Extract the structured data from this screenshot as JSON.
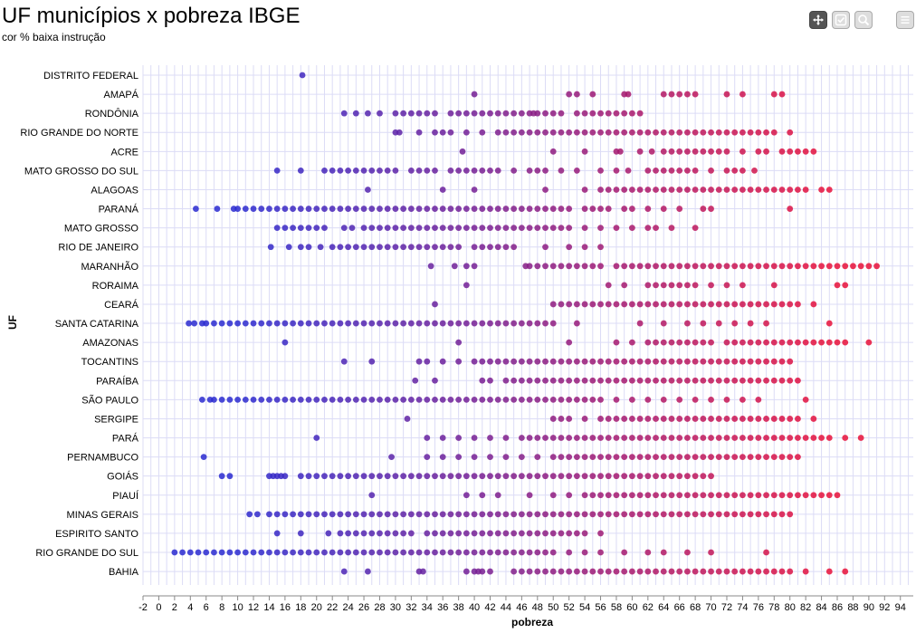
{
  "header": {
    "title": "UF municípios x pobreza IBGE",
    "subtitle": "cor % baixa instrução"
  },
  "toolbar": {
    "buttons": [
      {
        "icon": "pan-icon",
        "active": true
      },
      {
        "icon": "select-icon",
        "active": false
      },
      {
        "icon": "zoom-icon",
        "active": false
      },
      {
        "icon": "menu-icon",
        "active": false
      }
    ]
  },
  "colors": {
    "low_instruction": "#2a2ad0",
    "high_instruction": "#e8103a",
    "grid": "#dcdcf6",
    "background": "#ffffff"
  },
  "chart_data": {
    "type": "scatter",
    "title": "UF municípios x pobreza IBGE",
    "subtitle": "cor % baixa instrução",
    "xlabel": "pobreza",
    "ylabel": "UF",
    "xlim": [
      -2,
      95
    ],
    "x_ticks": [
      -2,
      0,
      2,
      4,
      6,
      8,
      10,
      12,
      14,
      16,
      18,
      20,
      22,
      24,
      26,
      28,
      30,
      32,
      34,
      36,
      38,
      40,
      42,
      44,
      46,
      48,
      50,
      52,
      54,
      56,
      58,
      60,
      62,
      64,
      66,
      68,
      70,
      72,
      74,
      76,
      78,
      80,
      82,
      84,
      86,
      88,
      90,
      92,
      94
    ],
    "grid": true,
    "categories": [
      "DISTRITO FEDERAL",
      "AMAPÁ",
      "RONDÔNIA",
      "RIO GRANDE DO NORTE",
      "ACRE",
      "MATO GROSSO DO SUL",
      "ALAGOAS",
      "PARANÁ",
      "MATO GROSSO",
      "RIO DE JANEIRO",
      "MARANHÃO",
      "RORAIMA",
      "CEARÁ",
      "SANTA CATARINA",
      "AMAZONAS",
      "TOCANTINS",
      "PARAÍBA",
      "SÃO PAULO",
      "SERGIPE",
      "PARÁ",
      "PERNAMBUCO",
      "GOIÁS",
      "PIAUÍ",
      "MINAS GERAIS",
      "ESPIRITO SANTO",
      "RIO GRANDE DO SUL",
      "BAHIA"
    ],
    "series": [
      {
        "category": "DISTRITO FEDERAL",
        "x": [
          18.2
        ]
      },
      {
        "category": "AMAPÁ",
        "x": [
          40,
          52,
          53,
          55,
          59,
          59.5,
          64,
          65,
          66,
          67,
          68,
          72,
          74,
          78,
          79
        ]
      },
      {
        "category": "RONDÔNIA",
        "x": [
          23.5,
          25,
          26.5,
          28,
          30,
          31,
          32,
          33,
          34,
          35,
          37,
          38,
          39,
          40,
          41,
          42,
          43,
          44,
          45,
          46,
          47,
          47.5,
          48,
          49,
          50,
          51,
          53,
          54,
          55,
          56,
          57,
          58,
          59,
          60,
          61
        ]
      },
      {
        "category": "RIO GRANDE DO NORTE",
        "x": [
          30,
          30.5,
          33,
          35,
          36,
          37,
          39,
          41,
          43,
          44,
          45,
          46,
          47,
          48,
          49,
          50,
          51,
          52,
          53,
          54,
          55,
          56,
          57,
          58,
          59,
          60,
          61,
          62,
          63,
          64,
          65,
          66,
          67,
          68,
          69,
          70,
          71,
          72,
          73,
          74,
          75,
          76,
          77,
          78,
          80
        ]
      },
      {
        "category": "ACRE",
        "x": [
          38.5,
          50,
          54,
          58,
          58.5,
          61,
          62.5,
          64,
          65,
          66,
          67,
          68,
          69,
          70,
          71,
          72,
          74,
          76,
          77,
          79,
          80,
          81,
          82,
          83
        ]
      },
      {
        "category": "MATO GROSSO DO SUL",
        "x": [
          15,
          18,
          21,
          22,
          23,
          24,
          25,
          26,
          27,
          28,
          29,
          30,
          32,
          33,
          34,
          35,
          37,
          38,
          39,
          40,
          41,
          42,
          43,
          45,
          47,
          48,
          49,
          51,
          53,
          56,
          58,
          59.5,
          62,
          63,
          64,
          65,
          66,
          67,
          68,
          70,
          72,
          73,
          74,
          75.5
        ]
      },
      {
        "category": "ALAGOAS",
        "x": [
          26.5,
          36,
          40,
          49,
          54,
          56,
          57,
          58,
          59,
          60,
          61,
          62,
          63,
          64,
          65,
          66,
          67,
          68,
          69,
          70,
          71,
          72,
          73,
          74,
          75,
          76,
          77,
          78,
          79,
          80,
          81,
          82,
          84,
          85
        ]
      },
      {
        "category": "PARANÁ",
        "x": [
          4.7,
          7.4,
          9.5,
          10,
          11,
          12,
          13,
          14,
          15,
          16,
          17,
          18,
          19,
          20,
          21,
          22,
          23,
          24,
          25,
          26,
          27,
          28,
          29,
          30,
          31,
          32,
          33,
          34,
          35,
          36,
          37,
          38,
          39,
          40,
          41,
          42,
          43,
          44,
          45,
          46,
          47,
          48,
          49,
          50,
          51,
          52,
          54,
          55,
          56,
          57,
          59,
          60,
          62,
          64,
          66,
          69,
          70,
          80
        ]
      },
      {
        "category": "MATO GROSSO",
        "x": [
          15,
          16,
          17,
          18,
          19,
          20,
          21,
          23.5,
          24.5,
          26,
          27,
          28,
          29,
          30,
          31,
          32,
          33,
          34,
          35,
          36,
          37,
          38,
          39,
          40,
          41,
          42,
          43,
          44,
          45,
          46,
          47,
          48,
          49,
          50,
          51,
          52,
          54,
          56,
          58,
          60,
          62,
          63,
          65,
          68
        ]
      },
      {
        "category": "RIO DE JANEIRO",
        "x": [
          14.2,
          16.5,
          18,
          19,
          20.5,
          22,
          23,
          24,
          25,
          26,
          27,
          28,
          29,
          30,
          31,
          32,
          33,
          34,
          35,
          36,
          37,
          38,
          40,
          41,
          42,
          43,
          44,
          45,
          49,
          52,
          54,
          56
        ]
      },
      {
        "category": "MARANHÃO",
        "x": [
          34.5,
          37.5,
          39,
          40,
          46.5,
          47,
          48,
          49,
          50,
          51,
          52,
          53,
          54,
          55,
          56,
          58,
          59,
          60,
          61,
          62,
          63,
          64,
          65,
          66,
          67,
          68,
          69,
          70,
          71,
          72,
          73,
          74,
          75,
          76,
          77,
          78,
          79,
          80,
          81,
          82,
          83,
          84,
          85,
          86,
          87,
          88,
          89,
          90,
          91
        ]
      },
      {
        "category": "RORAIMA",
        "x": [
          39,
          57,
          59,
          62,
          63,
          64,
          65,
          66,
          67,
          68,
          70,
          72,
          74,
          78,
          86,
          87
        ]
      },
      {
        "category": "CEARÁ",
        "x": [
          35,
          50,
          51,
          52,
          53,
          54,
          55,
          56,
          57,
          58,
          59,
          60,
          61,
          62,
          63,
          64,
          65,
          66,
          67,
          68,
          69,
          70,
          71,
          72,
          73,
          74,
          75,
          76,
          77,
          78,
          79,
          80,
          81,
          83
        ]
      },
      {
        "category": "SANTA CATARINA",
        "x": [
          3.8,
          4.5,
          5.5,
          6,
          7,
          8,
          9,
          10,
          11,
          12,
          13,
          14,
          15,
          16,
          17,
          18,
          19,
          20,
          21,
          22,
          23,
          24,
          25,
          26,
          27,
          28,
          29,
          30,
          31,
          32,
          33,
          34,
          35,
          36,
          37,
          38,
          39,
          40,
          41,
          42,
          43,
          44,
          45,
          46,
          47,
          48,
          49,
          50,
          53,
          61,
          64,
          67,
          69,
          71,
          73,
          75,
          77,
          85
        ]
      },
      {
        "category": "AMAZONAS",
        "x": [
          16,
          38,
          52,
          58,
          60,
          62,
          63,
          64,
          65,
          66,
          67,
          68,
          69,
          70,
          72,
          73,
          74,
          75,
          76,
          77,
          78,
          79,
          80,
          81,
          82,
          83,
          84,
          85,
          86,
          87,
          90
        ]
      },
      {
        "category": "TOCANTINS",
        "x": [
          23.5,
          27,
          33,
          34,
          36,
          38,
          40,
          41,
          42,
          43,
          44,
          45,
          46,
          47,
          48,
          49,
          50,
          51,
          52,
          53,
          54,
          55,
          56,
          57,
          58,
          59,
          60,
          61,
          62,
          63,
          64,
          65,
          66,
          67,
          68,
          69,
          70,
          71,
          72,
          73,
          74,
          75,
          76,
          77,
          78,
          79,
          80
        ]
      },
      {
        "category": "PARAÍBA",
        "x": [
          32.5,
          35,
          41,
          42,
          44,
          45,
          46,
          47,
          48,
          49,
          50,
          51,
          52,
          53,
          54,
          55,
          56,
          57,
          58,
          59,
          60,
          61,
          62,
          63,
          64,
          65,
          66,
          67,
          68,
          69,
          70,
          71,
          72,
          73,
          74,
          75,
          76,
          77,
          78,
          79,
          80,
          81
        ]
      },
      {
        "category": "SÃO PAULO",
        "x": [
          5.5,
          6.5,
          7,
          8,
          9,
          10,
          11,
          12,
          13,
          14,
          15,
          16,
          17,
          18,
          19,
          20,
          21,
          22,
          23,
          24,
          25,
          26,
          27,
          28,
          29,
          30,
          31,
          32,
          33,
          34,
          35,
          36,
          37,
          38,
          39,
          40,
          41,
          42,
          43,
          44,
          45,
          46,
          47,
          48,
          49,
          50,
          51,
          52,
          53,
          54,
          55,
          56,
          58,
          60,
          62,
          64,
          66,
          68,
          70,
          72,
          74,
          76,
          82
        ]
      },
      {
        "category": "SERGIPE",
        "x": [
          31.5,
          50,
          51,
          52,
          54,
          56,
          57,
          58,
          59,
          60,
          61,
          62,
          63,
          64,
          65,
          66,
          67,
          68,
          69,
          70,
          71,
          72,
          73,
          74,
          75,
          76,
          77,
          78,
          79,
          80,
          81,
          83
        ]
      },
      {
        "category": "PARÁ",
        "x": [
          20,
          34,
          36,
          38,
          40,
          42,
          44,
          46,
          47,
          48,
          49,
          50,
          51,
          52,
          53,
          54,
          55,
          56,
          57,
          58,
          59,
          60,
          61,
          62,
          63,
          64,
          65,
          66,
          67,
          68,
          69,
          70,
          71,
          72,
          73,
          74,
          75,
          76,
          77,
          78,
          79,
          80,
          81,
          82,
          83,
          84,
          85,
          87,
          89
        ]
      },
      {
        "category": "PERNAMBUCO",
        "x": [
          5.7,
          29.5,
          34,
          36,
          38,
          40,
          42,
          44,
          46,
          48,
          50,
          51,
          52,
          53,
          54,
          55,
          56,
          57,
          58,
          59,
          60,
          61,
          62,
          63,
          64,
          65,
          66,
          67,
          68,
          69,
          70,
          71,
          72,
          73,
          74,
          75,
          76,
          77,
          78,
          79,
          80,
          81
        ]
      },
      {
        "category": "GOIÁS",
        "x": [
          8,
          9,
          14,
          14.5,
          15,
          15.5,
          16,
          18,
          19,
          20,
          21,
          22,
          23,
          24,
          25,
          26,
          27,
          28,
          29,
          30,
          31,
          32,
          33,
          34,
          35,
          36,
          37,
          38,
          39,
          40,
          41,
          42,
          43,
          44,
          45,
          46,
          47,
          48,
          49,
          50,
          51,
          52,
          53,
          54,
          55,
          56,
          57,
          58,
          59,
          60,
          61,
          62,
          63,
          64,
          65,
          66,
          67,
          68,
          69,
          70
        ]
      },
      {
        "category": "PIAUÍ",
        "x": [
          27,
          39,
          41,
          43,
          47,
          50,
          52,
          54,
          55,
          56,
          57,
          58,
          59,
          60,
          61,
          62,
          63,
          64,
          65,
          66,
          67,
          68,
          69,
          70,
          71,
          72,
          73,
          74,
          75,
          76,
          77,
          78,
          79,
          80,
          81,
          82,
          83,
          84,
          85,
          86
        ]
      },
      {
        "category": "MINAS GERAIS",
        "x": [
          11.5,
          12.5,
          14,
          15,
          16,
          17,
          18,
          19,
          20,
          21,
          22,
          23,
          24,
          25,
          26,
          27,
          28,
          29,
          30,
          31,
          32,
          33,
          34,
          35,
          36,
          37,
          38,
          39,
          40,
          41,
          42,
          43,
          44,
          45,
          46,
          47,
          48,
          49,
          50,
          51,
          52,
          53,
          54,
          55,
          56,
          57,
          58,
          59,
          60,
          61,
          62,
          63,
          64,
          65,
          66,
          67,
          68,
          69,
          70,
          71,
          72,
          73,
          74,
          75,
          76,
          77,
          78,
          79,
          80
        ]
      },
      {
        "category": "ESPIRITO SANTO",
        "x": [
          15,
          18,
          21.5,
          23,
          24,
          25,
          26,
          27,
          28,
          29,
          30,
          31,
          32,
          34,
          35,
          36,
          37,
          38,
          39,
          40,
          41,
          42,
          43,
          44,
          45,
          46,
          47,
          48,
          49,
          50,
          51,
          52,
          53,
          54,
          56
        ]
      },
      {
        "category": "RIO GRANDE DO SUL",
        "x": [
          2,
          3,
          4,
          5,
          6,
          7,
          8,
          9,
          10,
          11,
          12,
          13,
          14,
          15,
          16,
          17,
          18,
          19,
          20,
          21,
          22,
          23,
          24,
          25,
          26,
          27,
          28,
          29,
          30,
          31,
          32,
          33,
          34,
          35,
          36,
          37,
          38,
          39,
          40,
          41,
          42,
          43,
          44,
          45,
          46,
          47,
          48,
          49,
          50,
          52,
          54,
          56,
          59,
          62,
          64,
          67,
          70,
          77
        ]
      },
      {
        "category": "BAHIA",
        "x": [
          23.5,
          26.5,
          33,
          33.5,
          39,
          40,
          40.5,
          41,
          42,
          45,
          46,
          47,
          48,
          49,
          50,
          51,
          52,
          53,
          54,
          55,
          56,
          57,
          58,
          59,
          60,
          61,
          62,
          63,
          64,
          65,
          66,
          67,
          68,
          69,
          70,
          71,
          72,
          73,
          74,
          75,
          76,
          77,
          78,
          79,
          80,
          82,
          85,
          87
        ]
      }
    ]
  }
}
